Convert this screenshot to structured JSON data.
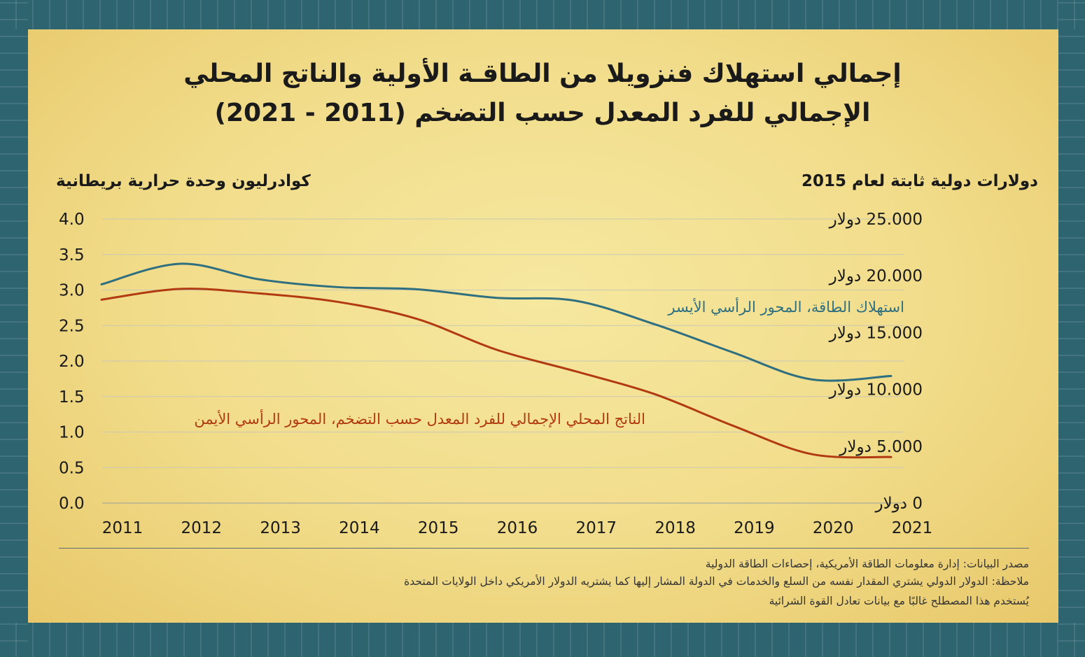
{
  "title_line1": "إجمالي استهلاك فنزويلا من الطاقـة الأولية والناتج المحلي",
  "title_line2": "الإجمالي للفرد المعدل حسب التضخم (2011 - 2021)",
  "left_axis_title": "كوادرليون وحدة حرارية بريطانية",
  "right_axis_title": "دولارات دولية ثابتة لعام 2015",
  "chart_data": {
    "type": "line",
    "x": [
      2011,
      2012,
      2013,
      2014,
      2015,
      2016,
      2017,
      2018,
      2019,
      2020,
      2021
    ],
    "x_tick_labels": [
      "2011",
      "2012",
      "2013",
      "2014",
      "2015",
      "2016",
      "2017",
      "2018",
      "2019",
      "2020",
      "2021"
    ],
    "y_left": {
      "label": "كوادرليون وحدة حرارية بريطانية",
      "range": [
        0,
        4
      ],
      "ticks": [
        "0.0",
        "0.5",
        "1.0",
        "1.5",
        "2.0",
        "2.5",
        "3.0",
        "3.5",
        "4.0"
      ]
    },
    "y_right": {
      "label": "دولارات دولية ثابتة لعام 2015",
      "range": [
        0,
        25000
      ],
      "ticks": [
        "0 دولار",
        "5.000 دولار",
        "10.000 دولار",
        "15.000 دولار",
        "20.000 دولار",
        "25.000 دولار"
      ]
    },
    "grid": true,
    "series": [
      {
        "name": "استهلاك الطاقة، المحور الرأسي الأيسر",
        "axis": "left",
        "color": "#2f6f80",
        "values": [
          3.08,
          3.37,
          3.15,
          3.04,
          3.01,
          2.89,
          2.85,
          2.52,
          2.12,
          1.74,
          1.79
        ]
      },
      {
        "name": "الناتج المحلي الإجمالي للفرد المعدل حسب التضخم، المحور الرأسي الأيمن",
        "axis": "right",
        "color": "#b23a12",
        "values": [
          17900,
          18850,
          18450,
          17700,
          16200,
          13500,
          11600,
          9600,
          6800,
          4300,
          4050
        ]
      }
    ]
  },
  "notes": {
    "source": "مصدر البيانات: إدارة معلومات الطاقة الأمريكية، إحصاءات الطاقة الدولية",
    "note1": "ملاحظة: الدولار الدولي يشتري المقدار نفسه من السلع والخدمات في الدولة المشار إليها كما يشتريه الدولار الأمريكي داخل الولايات المتحدة",
    "note2": "يُستخدم هذا المصطلح غالبًا مع بيانات تعادل القوة الشرائية"
  }
}
